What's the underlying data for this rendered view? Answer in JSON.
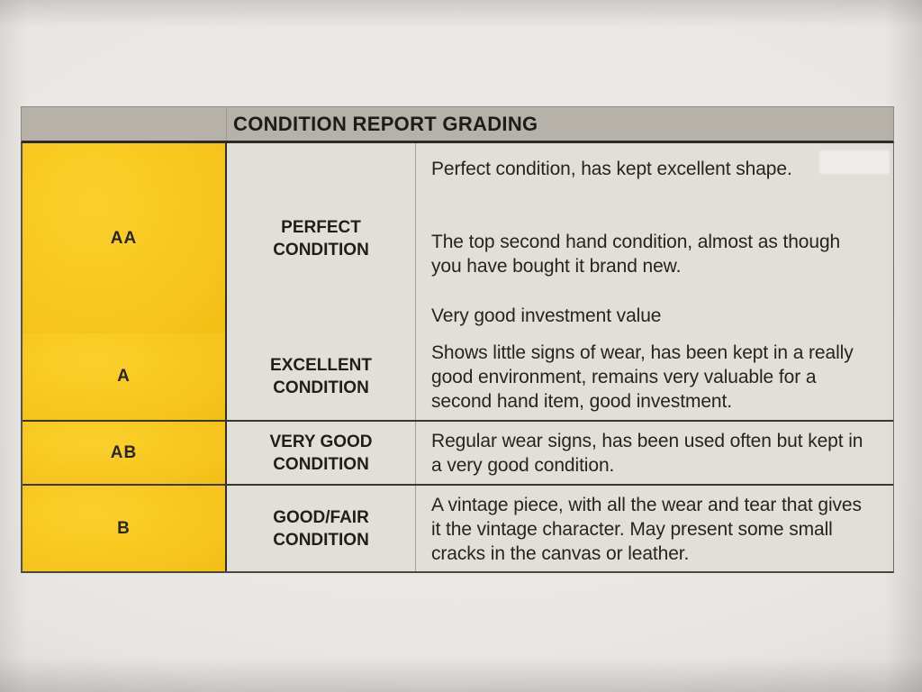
{
  "header": {
    "title": "CONDITION REPORT GRADING"
  },
  "colors": {
    "paper": "#e9e7e3",
    "cell": "#e2dfda",
    "headband": "#b7b2a9",
    "yellow": "#f6c41c",
    "ink": "#262320"
  },
  "rows": [
    {
      "grade": "AA",
      "condition": "PERFECT CONDITION",
      "paragraphs": [
        "Perfect condition, has kept excellent shape.",
        "The top second hand condition, almost as though you have bought it brand new.",
        "Very good investment value"
      ]
    },
    {
      "grade": "A",
      "condition": "EXCELLENT CONDITION",
      "paragraphs": [
        "Shows little signs of wear, has been kept in a really good environment, remains very valuable for a second hand item, good investment."
      ]
    },
    {
      "grade": "AB",
      "condition": "VERY GOOD CONDITION",
      "paragraphs": [
        "Regular wear signs, has been used often but kept in a very good condition."
      ]
    },
    {
      "grade": "B",
      "condition": "GOOD/FAIR CONDITION",
      "paragraphs": [
        "A vintage piece, with all the wear and tear that gives it the vintage character. May present some small cracks in the canvas or leather."
      ]
    }
  ]
}
